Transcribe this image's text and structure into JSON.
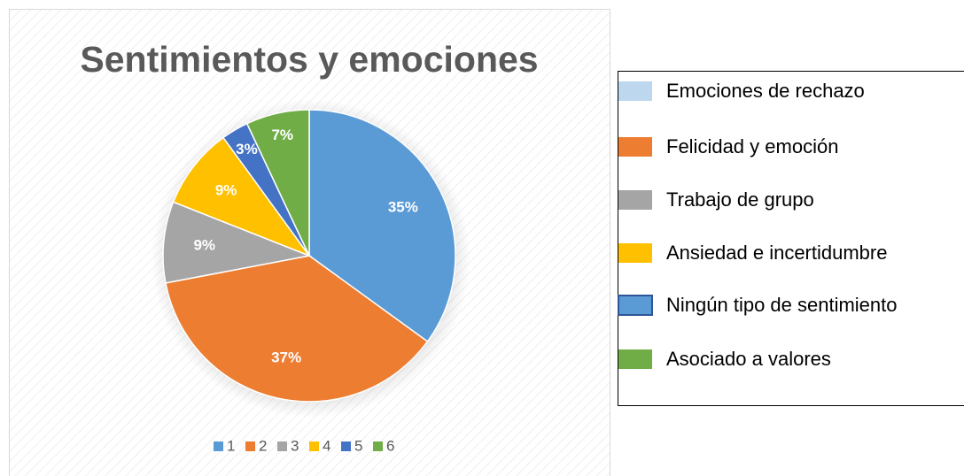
{
  "chart_data": {
    "type": "pie",
    "title": "Sentimientos y emociones",
    "categories": [
      "1",
      "2",
      "3",
      "4",
      "5",
      "6"
    ],
    "values": [
      35,
      37,
      9,
      9,
      3,
      7
    ],
    "value_labels": [
      "35%",
      "37%",
      "9%",
      "9%",
      "3%",
      "7%"
    ],
    "colors": [
      "#5b9bd5",
      "#ed7d31",
      "#a5a5a5",
      "#ffc000",
      "#4472c4",
      "#70ad47"
    ],
    "legend": "bottom"
  },
  "side_legend": {
    "items": [
      {
        "label": "Emociones de rechazo",
        "color": "#bdd7ee"
      },
      {
        "label": "Felicidad y emoción",
        "color": "#ed7d31"
      },
      {
        "label": "Trabajo de grupo",
        "color": "#a5a5a5"
      },
      {
        "label": "Ansiedad e incertidumbre",
        "color": "#ffc000"
      },
      {
        "label": "Ningún tipo de sentimiento",
        "color": "#5b9bd5"
      },
      {
        "label": "Asociado a valores",
        "color": "#70ad47"
      }
    ]
  }
}
